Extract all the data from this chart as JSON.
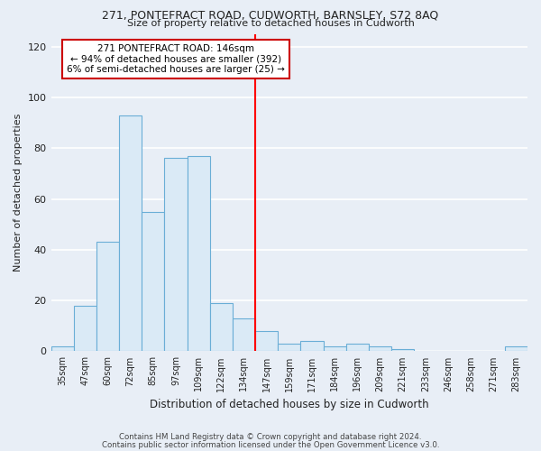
{
  "title1": "271, PONTEFRACT ROAD, CUDWORTH, BARNSLEY, S72 8AQ",
  "title2": "Size of property relative to detached houses in Cudworth",
  "xlabel": "Distribution of detached houses by size in Cudworth",
  "ylabel": "Number of detached properties",
  "categories": [
    "35sqm",
    "47sqm",
    "60sqm",
    "72sqm",
    "85sqm",
    "97sqm",
    "109sqm",
    "122sqm",
    "134sqm",
    "147sqm",
    "159sqm",
    "171sqm",
    "184sqm",
    "196sqm",
    "209sqm",
    "221sqm",
    "233sqm",
    "246sqm",
    "258sqm",
    "271sqm",
    "283sqm"
  ],
  "values": [
    2,
    18,
    43,
    93,
    55,
    76,
    77,
    19,
    13,
    8,
    3,
    4,
    2,
    3,
    2,
    1,
    0,
    0,
    0,
    0,
    2
  ],
  "bar_color": "#daeaf6",
  "bar_edge_color": "#6aaed6",
  "red_line_after_index": 8,
  "annotation_text": "271 PONTEFRACT ROAD: 146sqm\n← 94% of detached houses are smaller (392)\n6% of semi-detached houses are larger (25) →",
  "annotation_box_color": "#ffffff",
  "annotation_box_edge_color": "#cc0000",
  "ylim": [
    0,
    125
  ],
  "yticks": [
    0,
    20,
    40,
    60,
    80,
    100,
    120
  ],
  "background_color": "#e8eef6",
  "grid_color": "#ffffff",
  "footer_line1": "Contains HM Land Registry data © Crown copyright and database right 2024.",
  "footer_line2": "Contains public sector information licensed under the Open Government Licence v3.0."
}
